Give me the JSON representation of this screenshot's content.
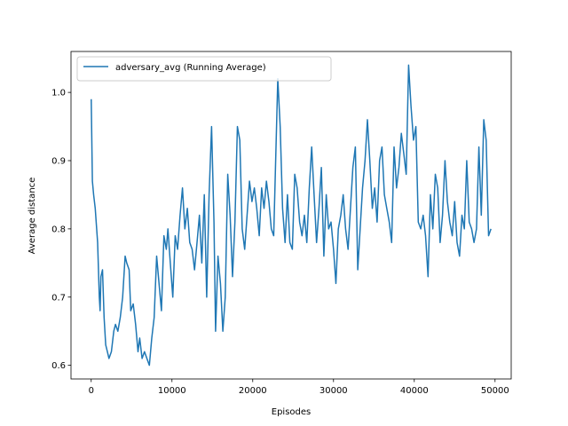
{
  "chart_data": {
    "type": "line",
    "title": "",
    "xlabel": "Episodes",
    "ylabel": "Average distance",
    "xlim": [
      -2500,
      52000
    ],
    "ylim": [
      0.58,
      1.06
    ],
    "xticks": [
      0,
      10000,
      20000,
      30000,
      40000,
      50000
    ],
    "xtick_labels": [
      "0",
      "10000",
      "20000",
      "30000",
      "40000",
      "50000"
    ],
    "yticks": [
      0.6,
      0.7,
      0.8,
      0.9,
      1.0
    ],
    "ytick_labels": [
      "0.6",
      "0.7",
      "0.8",
      "0.9",
      "1.0"
    ],
    "grid": false,
    "legend_position": "top-left",
    "colors": {
      "series": "#1f77b4",
      "axes": "#000000",
      "legend_border": "#cccccc"
    },
    "series": [
      {
        "name": "adversary_avg (Running Average)",
        "x": [
          0,
          150,
          300,
          500,
          800,
          1000,
          1100,
          1200,
          1400,
          1600,
          1800,
          2000,
          2200,
          2500,
          2800,
          3000,
          3300,
          3600,
          3900,
          4200,
          4400,
          4700,
          4900,
          5200,
          5500,
          5800,
          6000,
          6300,
          6600,
          6900,
          7200,
          7500,
          7800,
          8100,
          8400,
          8700,
          9000,
          9300,
          9500,
          9800,
          10100,
          10400,
          10700,
          11000,
          11300,
          11600,
          11900,
          12200,
          12500,
          12800,
          13100,
          13400,
          13700,
          14000,
          14300,
          14600,
          14900,
          15200,
          15400,
          15700,
          16000,
          16300,
          16600,
          16900,
          17200,
          17500,
          17800,
          18100,
          18400,
          18700,
          19000,
          19300,
          19600,
          19900,
          20200,
          20500,
          20800,
          21100,
          21400,
          21700,
          22000,
          22300,
          22600,
          22900,
          23100,
          23400,
          23700,
          24000,
          24300,
          24600,
          24900,
          25200,
          25500,
          25800,
          26100,
          26400,
          26700,
          27000,
          27300,
          27600,
          27900,
          28200,
          28500,
          28800,
          29100,
          29400,
          29700,
          30000,
          30300,
          30600,
          30900,
          31200,
          31500,
          31800,
          32100,
          32400,
          32700,
          33000,
          33300,
          33600,
          33900,
          34200,
          34500,
          34800,
          35100,
          35400,
          35700,
          36000,
          36300,
          36600,
          36900,
          37200,
          37500,
          37800,
          38100,
          38400,
          38700,
          39000,
          39300,
          39600,
          39900,
          40200,
          40500,
          40800,
          41100,
          41400,
          41700,
          42000,
          42300,
          42600,
          42900,
          43200,
          43500,
          43800,
          44100,
          44400,
          44700,
          45000,
          45300,
          45600,
          45900,
          46200,
          46500,
          46800,
          47100,
          47400,
          47700,
          48000,
          48300,
          48600,
          48900,
          49200,
          49500
        ],
        "y": [
          0.99,
          0.87,
          0.85,
          0.83,
          0.78,
          0.7,
          0.68,
          0.73,
          0.74,
          0.67,
          0.63,
          0.62,
          0.61,
          0.62,
          0.65,
          0.66,
          0.65,
          0.67,
          0.7,
          0.76,
          0.75,
          0.74,
          0.68,
          0.69,
          0.66,
          0.62,
          0.64,
          0.61,
          0.62,
          0.61,
          0.6,
          0.64,
          0.67,
          0.76,
          0.72,
          0.68,
          0.79,
          0.77,
          0.8,
          0.75,
          0.7,
          0.79,
          0.77,
          0.82,
          0.86,
          0.8,
          0.83,
          0.78,
          0.77,
          0.74,
          0.78,
          0.82,
          0.75,
          0.85,
          0.7,
          0.85,
          0.95,
          0.81,
          0.65,
          0.76,
          0.72,
          0.65,
          0.7,
          0.88,
          0.82,
          0.73,
          0.81,
          0.95,
          0.93,
          0.8,
          0.77,
          0.82,
          0.87,
          0.84,
          0.86,
          0.83,
          0.79,
          0.86,
          0.83,
          0.87,
          0.84,
          0.8,
          0.79,
          0.93,
          1.02,
          0.95,
          0.83,
          0.78,
          0.85,
          0.78,
          0.77,
          0.88,
          0.86,
          0.81,
          0.79,
          0.82,
          0.78,
          0.86,
          0.92,
          0.85,
          0.78,
          0.83,
          0.89,
          0.76,
          0.85,
          0.8,
          0.81,
          0.77,
          0.72,
          0.8,
          0.82,
          0.85,
          0.8,
          0.77,
          0.83,
          0.89,
          0.92,
          0.74,
          0.8,
          0.86,
          0.9,
          0.96,
          0.9,
          0.83,
          0.86,
          0.81,
          0.9,
          0.92,
          0.85,
          0.83,
          0.81,
          0.78,
          0.92,
          0.86,
          0.89,
          0.94,
          0.91,
          0.88,
          1.04,
          0.98,
          0.93,
          0.95,
          0.81,
          0.8,
          0.82,
          0.79,
          0.73,
          0.85,
          0.8,
          0.88,
          0.86,
          0.78,
          0.82,
          0.9,
          0.84,
          0.81,
          0.79,
          0.84,
          0.78,
          0.76,
          0.82,
          0.8,
          0.9,
          0.81,
          0.8,
          0.78,
          0.8,
          0.92,
          0.82,
          0.96,
          0.93,
          0.79,
          0.8
        ]
      }
    ]
  }
}
